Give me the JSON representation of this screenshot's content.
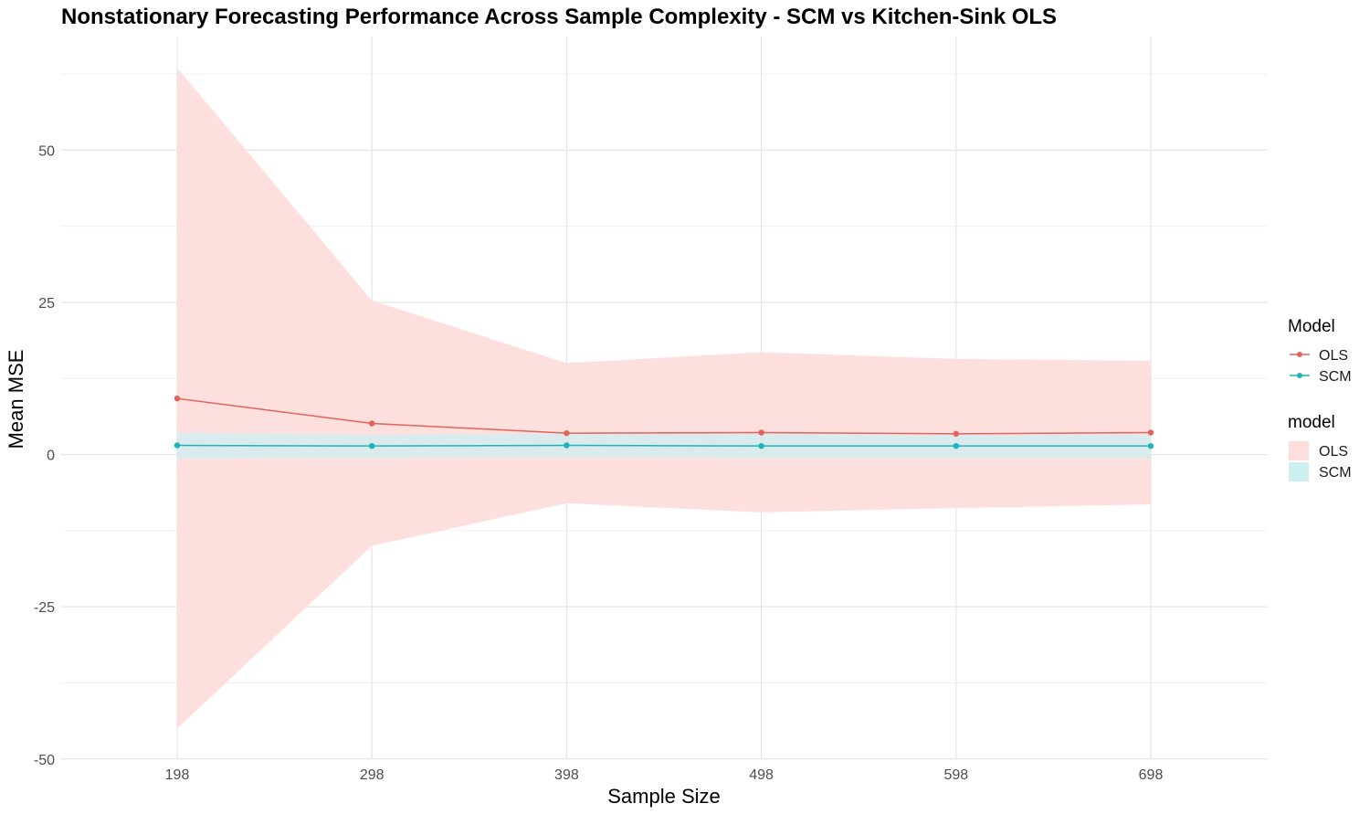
{
  "chart_data": {
    "type": "line",
    "title": "Nonstationary Forecasting Performance Across Sample Complexity - SCM vs Kitchen-Sink OLS",
    "xlabel": "Sample Size",
    "ylabel": "Mean MSE",
    "x": [
      198,
      298,
      398,
      498,
      598,
      698
    ],
    "xticks": [
      "198",
      "298",
      "398",
      "498",
      "598",
      "698"
    ],
    "ylim": [
      -50,
      65
    ],
    "yticks": [
      -50,
      -25,
      0,
      25,
      50
    ],
    "grid": true,
    "legend_placement": "right",
    "series": [
      {
        "name": "OLS",
        "color": "#E4625B",
        "ribbon_color": "#FDDEDC",
        "values": [
          9.2,
          5.1,
          3.5,
          3.6,
          3.4,
          3.6
        ],
        "lower": [
          -45,
          -15,
          -8,
          -9.5,
          -8.8,
          -8.2
        ],
        "upper": [
          63.5,
          25.3,
          15.0,
          16.8,
          15.7,
          15.4
        ]
      },
      {
        "name": "SCM",
        "color": "#1FB3B8",
        "ribbon_color": "#CCEFF0",
        "values": [
          1.5,
          1.4,
          1.5,
          1.4,
          1.4,
          1.4
        ],
        "lower": [
          -0.7,
          -0.6,
          -0.5,
          -0.6,
          -0.6,
          -0.6
        ],
        "upper": [
          3.6,
          3.3,
          3.4,
          3.4,
          3.3,
          3.3
        ]
      }
    ],
    "legends": [
      {
        "title": "Model",
        "kind": "line",
        "entries": [
          "OLS",
          "SCM"
        ]
      },
      {
        "title": "model",
        "kind": "fill",
        "entries": [
          "OLS",
          "SCM"
        ]
      }
    ]
  }
}
